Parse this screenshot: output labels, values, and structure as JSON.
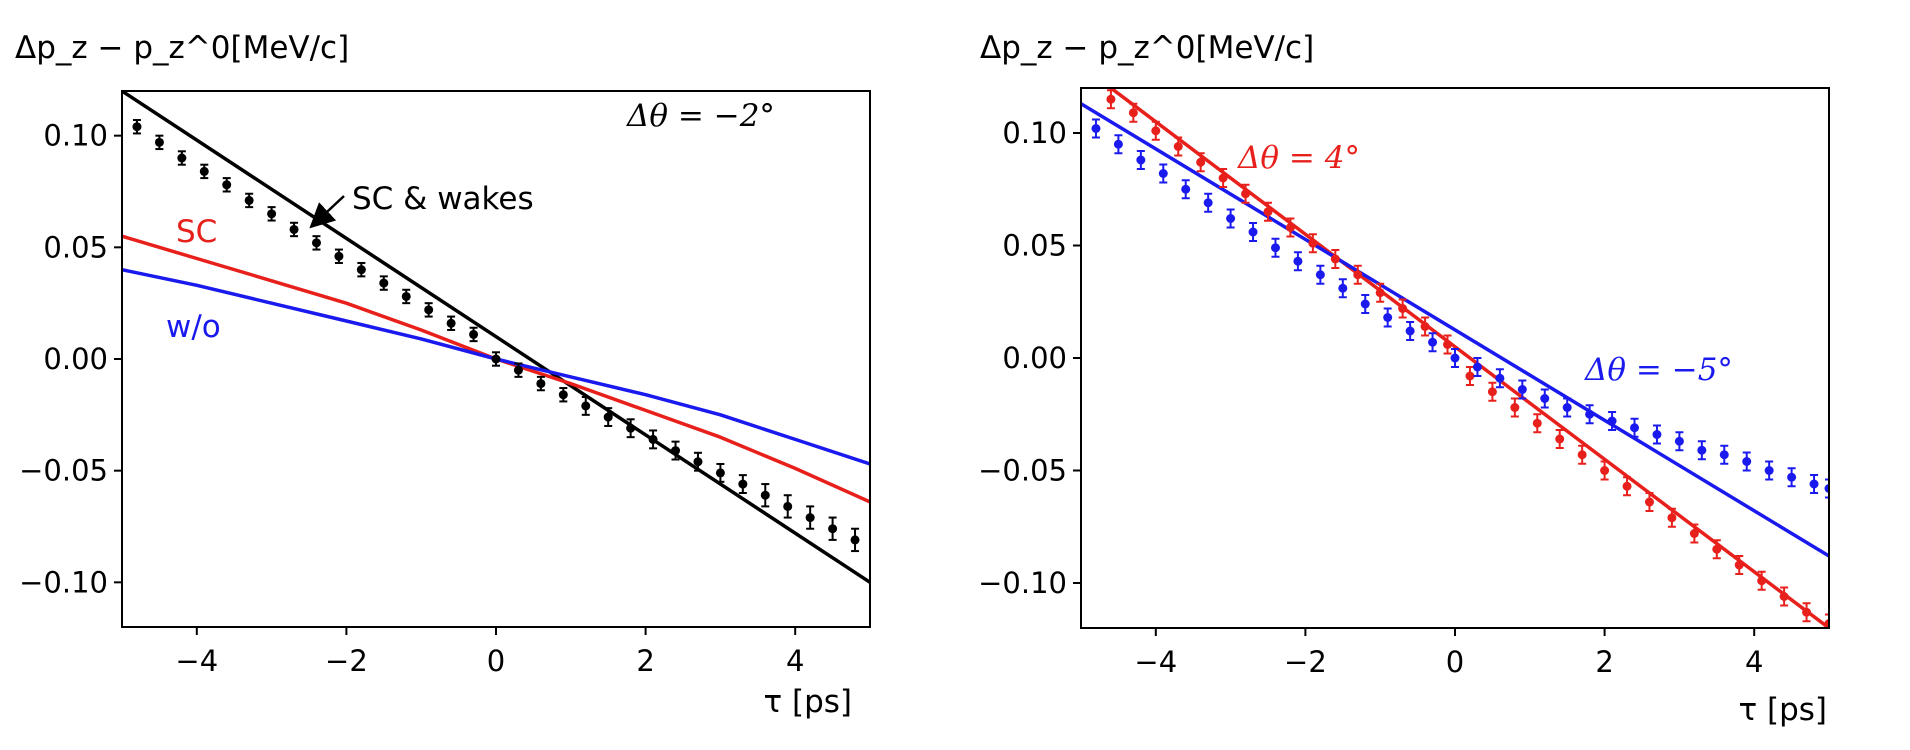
{
  "chart_data": [
    {
      "type": "line",
      "panel": "left",
      "ylabel": "Δp_z − p_z^0[MeV/c]",
      "xlabel": "τ [ps]",
      "xlim": [
        -5,
        5
      ],
      "ylim": [
        -0.12,
        0.12
      ],
      "xticks": [
        -4,
        -2,
        0,
        2,
        4
      ],
      "xtick_labels": [
        "−4",
        "−2",
        "0",
        "2",
        "4"
      ],
      "yticks": [
        0.1,
        0.05,
        0.0,
        -0.05,
        -0.1
      ],
      "ytick_labels": [
        "0.10",
        "0.05",
        "0.00",
        "−0.05",
        "−0.10"
      ],
      "annotations": [
        {
          "name": "delta-theta",
          "text": "Δθ = −2°",
          "color": "#000000"
        },
        {
          "name": "sc-wakes",
          "text": "SC & wakes",
          "color": "#000000"
        },
        {
          "name": "sc",
          "text": "SC",
          "color": "#e8201c"
        },
        {
          "name": "without",
          "text": "w/o",
          "color": "#1a1aee"
        }
      ],
      "series": [
        {
          "name": "SC & wakes",
          "kind": "line",
          "color": "#000000",
          "x": [
            -5,
            5
          ],
          "y": [
            0.12,
            -0.1
          ]
        },
        {
          "name": "SC",
          "kind": "line",
          "color": "#e8201c",
          "x": [
            -5,
            -4,
            -3,
            -2,
            -1,
            0,
            1,
            2,
            3,
            4,
            5
          ],
          "y": [
            0.055,
            0.045,
            0.035,
            0.025,
            0.013,
            0.0,
            -0.011,
            -0.023,
            -0.035,
            -0.049,
            -0.064
          ]
        },
        {
          "name": "w/o",
          "kind": "line",
          "color": "#1a1aee",
          "x": [
            -5,
            -4,
            -3,
            -2,
            -1,
            0,
            1,
            2,
            3,
            4,
            5
          ],
          "y": [
            0.04,
            0.033,
            0.025,
            0.017,
            0.009,
            0.0,
            -0.008,
            -0.016,
            -0.025,
            -0.036,
            -0.047
          ]
        },
        {
          "name": "measured",
          "kind": "points",
          "color": "#000000",
          "x": [
            -4.8,
            -4.5,
            -4.2,
            -3.9,
            -3.6,
            -3.3,
            -3.0,
            -2.7,
            -2.4,
            -2.1,
            -1.8,
            -1.5,
            -1.2,
            -0.9,
            -0.6,
            -0.3,
            0.0,
            0.3,
            0.6,
            0.9,
            1.2,
            1.5,
            1.8,
            2.1,
            2.4,
            2.7,
            3.0,
            3.3,
            3.6,
            3.9,
            4.2,
            4.5,
            4.8
          ],
          "y": [
            0.104,
            0.097,
            0.09,
            0.084,
            0.078,
            0.071,
            0.065,
            0.058,
            0.052,
            0.046,
            0.04,
            0.034,
            0.028,
            0.022,
            0.016,
            0.011,
            0.0,
            -0.005,
            -0.011,
            -0.016,
            -0.021,
            -0.026,
            -0.031,
            -0.036,
            -0.041,
            -0.046,
            -0.051,
            -0.056,
            -0.061,
            -0.066,
            -0.071,
            -0.076,
            -0.081
          ],
          "err": [
            0.003,
            0.003,
            0.003,
            0.003,
            0.003,
            0.003,
            0.003,
            0.003,
            0.003,
            0.003,
            0.003,
            0.003,
            0.003,
            0.003,
            0.003,
            0.003,
            0.003,
            0.003,
            0.003,
            0.003,
            0.004,
            0.004,
            0.004,
            0.004,
            0.004,
            0.004,
            0.004,
            0.004,
            0.005,
            0.005,
            0.005,
            0.005,
            0.005
          ]
        }
      ]
    },
    {
      "type": "line",
      "panel": "right",
      "ylabel": "Δp_z − p_z^0[MeV/c]",
      "xlabel": "τ [ps]",
      "xlim": [
        -5,
        5
      ],
      "ylim": [
        -0.12,
        0.12
      ],
      "xticks": [
        -4,
        -2,
        0,
        2,
        4
      ],
      "xtick_labels": [
        "−4",
        "−2",
        "0",
        "2",
        "4"
      ],
      "yticks": [
        0.1,
        0.05,
        0.0,
        -0.05,
        -0.1
      ],
      "ytick_labels": [
        "0.10",
        "0.05",
        "0.00",
        "−0.05",
        "−0.10"
      ],
      "annotations": [
        {
          "name": "delta-theta-4",
          "text": "Δθ = 4°",
          "color": "#e8201c"
        },
        {
          "name": "delta-theta-minus5",
          "text": "Δθ = −5°",
          "color": "#1a1aee"
        }
      ],
      "series": [
        {
          "name": "Δθ = 4° fit",
          "kind": "line",
          "color": "#e8201c",
          "x": [
            -5,
            5
          ],
          "y": [
            0.13,
            -0.12
          ]
        },
        {
          "name": "Δθ = −5° fit",
          "kind": "line",
          "color": "#1a1aee",
          "x": [
            -5,
            5
          ],
          "y": [
            0.113,
            -0.088
          ]
        },
        {
          "name": "Δθ = 4° measured",
          "kind": "points",
          "color": "#e8201c",
          "x": [
            -4.6,
            -4.3,
            -4.0,
            -3.7,
            -3.4,
            -3.1,
            -2.8,
            -2.5,
            -2.2,
            -1.9,
            -1.6,
            -1.3,
            -1.0,
            -0.7,
            -0.4,
            -0.1,
            0.2,
            0.5,
            0.8,
            1.1,
            1.4,
            1.7,
            2.0,
            2.3,
            2.6,
            2.9,
            3.2,
            3.5,
            3.8,
            4.1,
            4.4,
            4.7,
            5.0
          ],
          "y": [
            0.115,
            0.109,
            0.101,
            0.094,
            0.087,
            0.08,
            0.073,
            0.065,
            0.058,
            0.051,
            0.044,
            0.037,
            0.029,
            0.022,
            0.014,
            0.006,
            -0.008,
            -0.015,
            -0.022,
            -0.029,
            -0.036,
            -0.043,
            -0.05,
            -0.057,
            -0.064,
            -0.071,
            -0.078,
            -0.085,
            -0.092,
            -0.099,
            -0.106,
            -0.113,
            -0.118
          ]
        },
        {
          "name": "Δθ = −5° measured",
          "kind": "points",
          "color": "#1a1aee",
          "x": [
            -4.8,
            -4.5,
            -4.2,
            -3.9,
            -3.6,
            -3.3,
            -3.0,
            -2.7,
            -2.4,
            -2.1,
            -1.8,
            -1.5,
            -1.2,
            -0.9,
            -0.6,
            -0.3,
            0.0,
            0.3,
            0.6,
            0.9,
            1.2,
            1.5,
            1.8,
            2.1,
            2.4,
            2.7,
            3.0,
            3.3,
            3.6,
            3.9,
            4.2,
            4.5,
            4.8,
            5.0
          ],
          "y": [
            0.102,
            0.095,
            0.088,
            0.082,
            0.075,
            0.069,
            0.062,
            0.056,
            0.049,
            0.043,
            0.037,
            0.031,
            0.024,
            0.018,
            0.012,
            0.007,
            0.0,
            -0.004,
            -0.009,
            -0.014,
            -0.018,
            -0.022,
            -0.025,
            -0.028,
            -0.031,
            -0.034,
            -0.037,
            -0.041,
            -0.043,
            -0.046,
            -0.05,
            -0.053,
            -0.056,
            -0.058
          ]
        }
      ]
    }
  ]
}
